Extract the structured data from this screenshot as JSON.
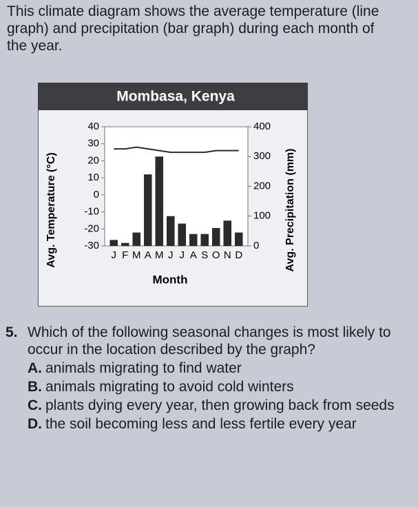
{
  "intro": "This climate diagram shows the average temperature (line graph) and precipitation (bar graph) during each month of the year.",
  "chart_data": {
    "type": "combo",
    "title": "Mombasa, Kenya",
    "x_label": "Month",
    "y_label": "Avg. Temperature (°C)",
    "y2_label": "Avg. Precipitation (mm)",
    "categories": [
      "J",
      "F",
      "M",
      "A",
      "M",
      "J",
      "J",
      "A",
      "S",
      "O",
      "N",
      "D"
    ],
    "series": [
      {
        "type": "bar",
        "axis": "y2",
        "color": "#2b2b2b",
        "values": [
          20,
          10,
          45,
          240,
          300,
          100,
          75,
          40,
          40,
          60,
          85,
          45
        ]
      },
      {
        "type": "line",
        "axis": "y",
        "color": "#2b2b2b",
        "values": [
          27,
          27,
          28,
          27,
          26,
          25,
          25,
          25,
          25,
          26,
          26,
          26
        ]
      }
    ],
    "ylim": [
      -30,
      40
    ],
    "yticks": [
      -30,
      -20,
      -10,
      0,
      10,
      20,
      30,
      40
    ],
    "y2lim": [
      0,
      400
    ],
    "y2ticks": [
      0,
      100,
      200,
      300,
      400
    ]
  },
  "question": {
    "number": "5.",
    "text": "Which of the following seasonal changes is most likely to occur in the location described by the graph?",
    "options": [
      {
        "letter": "A.",
        "text": "animals migrating to find water"
      },
      {
        "letter": "B.",
        "text": "animals migrating to avoid cold winters"
      },
      {
        "letter": "C.",
        "text": "plants dying every year, then growing back from seeds"
      },
      {
        "letter": "D.",
        "text": "the soil becoming less and less fertile every year"
      }
    ]
  }
}
